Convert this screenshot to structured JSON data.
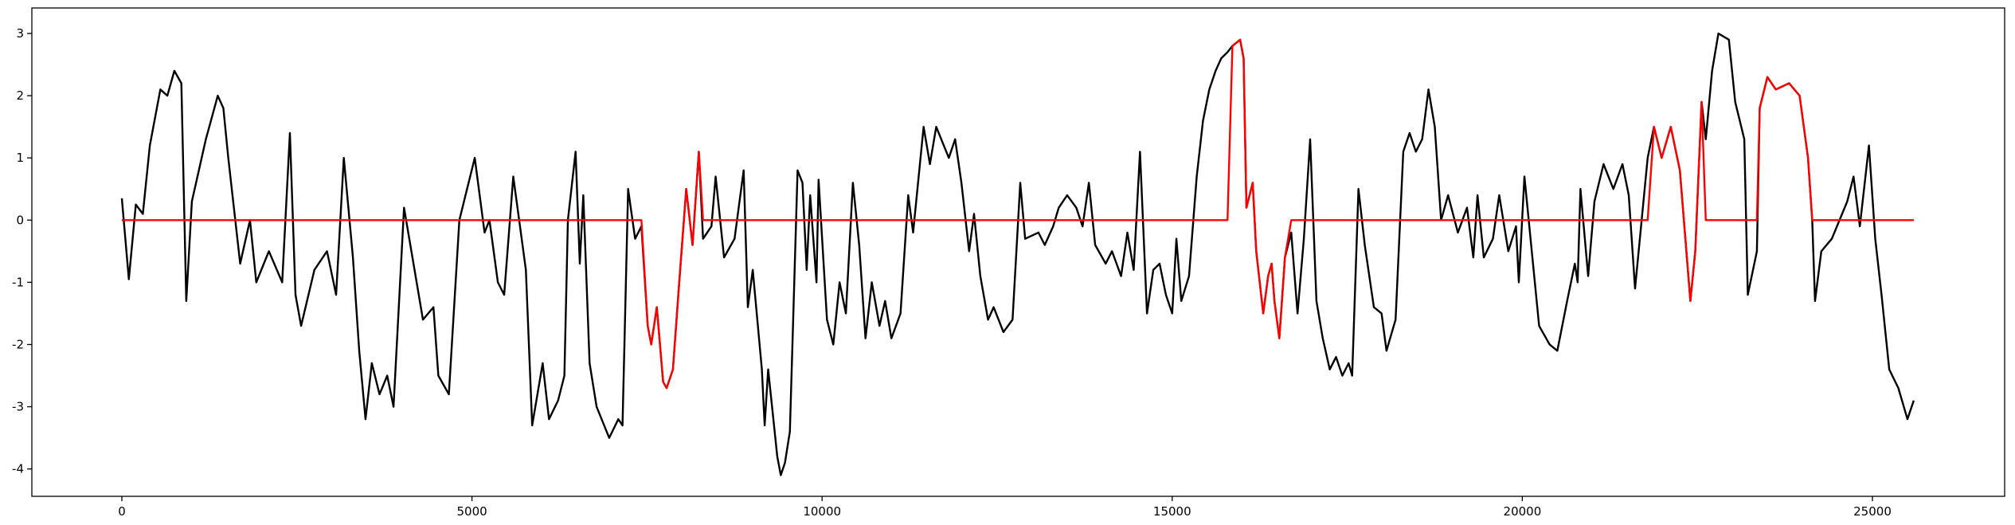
{
  "chart_data": {
    "type": "line",
    "x": [
      0,
      100,
      200,
      300,
      400,
      550,
      650,
      750,
      850,
      920,
      1000,
      1200,
      1370,
      1450,
      1520,
      1690,
      1830,
      1920,
      2100,
      2290,
      2400,
      2480,
      2560,
      2750,
      2930,
      3060,
      3170,
      3300,
      3390,
      3480,
      3570,
      3680,
      3790,
      3880,
      4030,
      4210,
      4300,
      4450,
      4520,
      4670,
      4820,
      5040,
      5180,
      5250,
      5370,
      5460,
      5590,
      5770,
      5860,
      6010,
      6100,
      6230,
      6320,
      6370,
      6480,
      6540,
      6590,
      6680,
      6780,
      6960,
      7090,
      7150,
      7230,
      7330,
      7420,
      7510,
      7560,
      7640,
      7730,
      7780,
      7870,
      7960,
      8060,
      8150,
      8240,
      8300,
      8420,
      8480,
      8600,
      8750,
      8880,
      8940,
      9010,
      9140,
      9180,
      9230,
      9360,
      9410,
      9470,
      9540,
      9650,
      9720,
      9780,
      9830,
      9920,
      9950,
      10070,
      10160,
      10250,
      10340,
      10440,
      10530,
      10620,
      10710,
      10820,
      10900,
      10990,
      11120,
      11230,
      11300,
      11450,
      11540,
      11630,
      11810,
      11900,
      11990,
      12100,
      12170,
      12260,
      12370,
      12450,
      12590,
      12720,
      12830,
      12900,
      13090,
      13180,
      13300,
      13380,
      13500,
      13630,
      13720,
      13810,
      13900,
      14050,
      14140,
      14270,
      14360,
      14450,
      14540,
      14640,
      14730,
      14820,
      14910,
      15000,
      15060,
      15130,
      15240,
      15350,
      15440,
      15530,
      15620,
      15700,
      15790,
      15860,
      15970,
      16020,
      16060,
      16150,
      16200,
      16300,
      16370,
      16420,
      16460,
      16530,
      16610,
      16700,
      16790,
      16880,
      16970,
      17060,
      17150,
      17250,
      17340,
      17430,
      17520,
      17570,
      17660,
      17750,
      17880,
      17990,
      18060,
      18190,
      18300,
      18390,
      18480,
      18570,
      18660,
      18750,
      18840,
      18940,
      19080,
      19210,
      19300,
      19360,
      19450,
      19580,
      19670,
      19800,
      19910,
      19950,
      20030,
      20240,
      20390,
      20500,
      20640,
      20750,
      20790,
      20830,
      20940,
      21030,
      21160,
      21300,
      21430,
      21520,
      21610,
      21790,
      21880,
      21990,
      22120,
      22250,
      22400,
      22470,
      22560,
      22620,
      22710,
      22800,
      22950,
      23040,
      23170,
      23220,
      23350,
      23390,
      23500,
      23620,
      23810,
      23960,
      24080,
      24140,
      24180,
      24270,
      24420,
      24640,
      24730,
      24820,
      24950,
      25040,
      25130,
      25240,
      25370,
      25500,
      25590
    ],
    "series": [
      {
        "color": "#000000",
        "values": [
          0.35,
          -0.95,
          0.25,
          0.1,
          1.2,
          2.1,
          2.0,
          2.4,
          2.2,
          -1.3,
          0.3,
          1.3,
          2.0,
          1.8,
          1.0,
          -0.7,
          0.0,
          -1.0,
          -0.5,
          -1.0,
          1.4,
          -1.2,
          -1.7,
          -0.8,
          -0.5,
          -1.2,
          1.0,
          -0.6,
          -2.1,
          -3.2,
          -2.3,
          -2.8,
          -2.5,
          -3.0,
          0.2,
          -1.0,
          -1.6,
          -1.4,
          -2.5,
          -2.8,
          0.0,
          1.0,
          -0.2,
          0.0,
          -1.0,
          -1.2,
          0.7,
          -0.8,
          -3.3,
          -2.3,
          -3.2,
          -2.9,
          -2.5,
          0.0,
          1.1,
          -0.7,
          0.4,
          -2.3,
          -3.0,
          -3.5,
          -3.2,
          -3.3,
          0.5,
          -0.3,
          -0.1,
          -1.7,
          -2.0,
          -1.4,
          -2.6,
          -2.7,
          -2.4,
          -1.0,
          0.5,
          -0.4,
          1.1,
          -0.3,
          -0.1,
          0.7,
          -0.6,
          -0.3,
          0.8,
          -1.4,
          -0.8,
          -2.4,
          -3.3,
          -2.4,
          -3.8,
          -4.1,
          -3.9,
          -3.4,
          0.8,
          0.6,
          -0.8,
          0.4,
          -1.0,
          0.65,
          -1.6,
          -2.0,
          -1.0,
          -1.5,
          0.6,
          -0.4,
          -1.9,
          -1.0,
          -1.7,
          -1.3,
          -1.9,
          -1.5,
          0.4,
          -0.2,
          1.5,
          0.9,
          1.5,
          1.0,
          1.3,
          0.6,
          -0.5,
          0.1,
          -0.9,
          -1.6,
          -1.4,
          -1.8,
          -1.6,
          0.6,
          -0.3,
          -0.2,
          -0.4,
          -0.1,
          0.2,
          0.4,
          0.2,
          -0.1,
          0.6,
          -0.4,
          -0.7,
          -0.5,
          -0.9,
          -0.2,
          -0.8,
          1.1,
          -1.5,
          -0.8,
          -0.7,
          -1.2,
          -1.5,
          -0.3,
          -1.3,
          -0.9,
          0.7,
          1.6,
          2.1,
          2.4,
          2.6,
          2.7,
          2.8,
          2.9,
          2.6,
          0.2,
          0.6,
          -0.5,
          -1.5,
          -0.9,
          -0.7,
          -1.3,
          -1.9,
          -0.6,
          -0.2,
          -1.5,
          -0.3,
          1.3,
          -1.3,
          -1.9,
          -2.4,
          -2.2,
          -2.5,
          -2.3,
          -2.5,
          0.5,
          -0.4,
          -1.4,
          -1.5,
          -2.1,
          -1.6,
          1.1,
          1.4,
          1.1,
          1.3,
          2.1,
          1.5,
          0.0,
          0.4,
          -0.2,
          0.2,
          -0.6,
          0.4,
          -0.6,
          -0.3,
          0.4,
          -0.5,
          -0.1,
          -1.0,
          0.7,
          -1.7,
          -2.0,
          -2.1,
          -1.3,
          -0.7,
          -1.0,
          0.5,
          -0.9,
          0.3,
          0.9,
          0.5,
          0.9,
          0.4,
          -1.1,
          1.0,
          1.5,
          1.0,
          1.5,
          0.8,
          -1.3,
          -0.5,
          1.9,
          1.3,
          2.4,
          3.0,
          2.9,
          1.9,
          1.3,
          -1.2,
          -0.5,
          1.8,
          2.3,
          2.1,
          2.2,
          2.0,
          1.0,
          0.0,
          -1.3,
          -0.5,
          -0.3,
          0.3,
          0.7,
          -0.1,
          1.2,
          -0.3,
          -1.2,
          -2.4,
          -2.7,
          -3.2,
          -2.9
        ]
      },
      {
        "color": "#ff0000",
        "values": [
          0,
          0,
          0,
          0,
          0,
          0,
          0,
          0,
          0,
          0,
          0,
          0,
          0,
          0,
          0,
          0,
          0,
          0,
          0,
          0,
          0,
          0,
          0,
          0,
          0,
          0,
          0,
          0,
          0,
          0,
          0,
          0,
          0,
          0,
          0,
          0,
          0,
          0,
          0,
          0,
          0,
          0,
          0,
          0,
          0,
          0,
          0,
          0,
          0,
          0,
          0,
          0,
          0,
          0,
          0,
          0,
          0,
          0,
          0,
          0,
          0,
          0,
          0,
          0,
          0,
          -1.7,
          -2.0,
          -1.4,
          -2.6,
          -2.7,
          -2.4,
          -1.0,
          0.5,
          -0.4,
          1.1,
          0,
          0,
          0,
          0,
          0,
          0,
          0,
          0,
          0,
          0,
          0,
          0,
          0,
          0,
          0,
          0,
          0,
          0,
          0,
          0,
          0,
          0,
          0,
          0,
          0,
          0,
          0,
          0,
          0,
          0,
          0,
          0,
          0,
          0,
          0,
          0,
          0,
          0,
          0,
          0,
          0,
          0,
          0,
          0,
          0,
          0,
          0,
          0,
          0,
          0,
          0,
          0,
          0,
          0,
          0,
          0,
          0,
          0,
          0,
          0,
          0,
          0,
          0,
          0,
          0,
          0,
          0,
          0,
          0,
          0,
          0,
          0,
          0,
          0,
          0,
          0,
          0,
          0,
          0,
          2.8,
          2.9,
          2.6,
          0.2,
          0.6,
          -0.5,
          -1.5,
          -0.9,
          -0.7,
          -1.3,
          -1.9,
          -0.6,
          0,
          0,
          0,
          0,
          0,
          0,
          0,
          0,
          0,
          0,
          0,
          0,
          0,
          0,
          0,
          0,
          0,
          0,
          0,
          0,
          0,
          0,
          0,
          0,
          0,
          0,
          0,
          0,
          0,
          0,
          0,
          0,
          0,
          0,
          0,
          0,
          0,
          0,
          0,
          0,
          0,
          0,
          0,
          0,
          0,
          0,
          0,
          0,
          0,
          0,
          0,
          1.5,
          1.0,
          1.5,
          0.8,
          -1.3,
          -0.5,
          1.9,
          0,
          0,
          0,
          0,
          0,
          0,
          0,
          0,
          1.8,
          2.3,
          2.1,
          2.2,
          2.0,
          1.0,
          0.0,
          0,
          0,
          0,
          0,
          0,
          0,
          0,
          0,
          0,
          0,
          0,
          0,
          0
        ]
      }
    ],
    "xlim": [
      -1285,
      26888
    ],
    "ylim": [
      -4.44,
      3.41
    ],
    "xticks": [
      0,
      5000,
      10000,
      15000,
      20000,
      25000
    ],
    "yticks": [
      -4,
      -3,
      -2,
      -1,
      0,
      1,
      2,
      3
    ]
  }
}
